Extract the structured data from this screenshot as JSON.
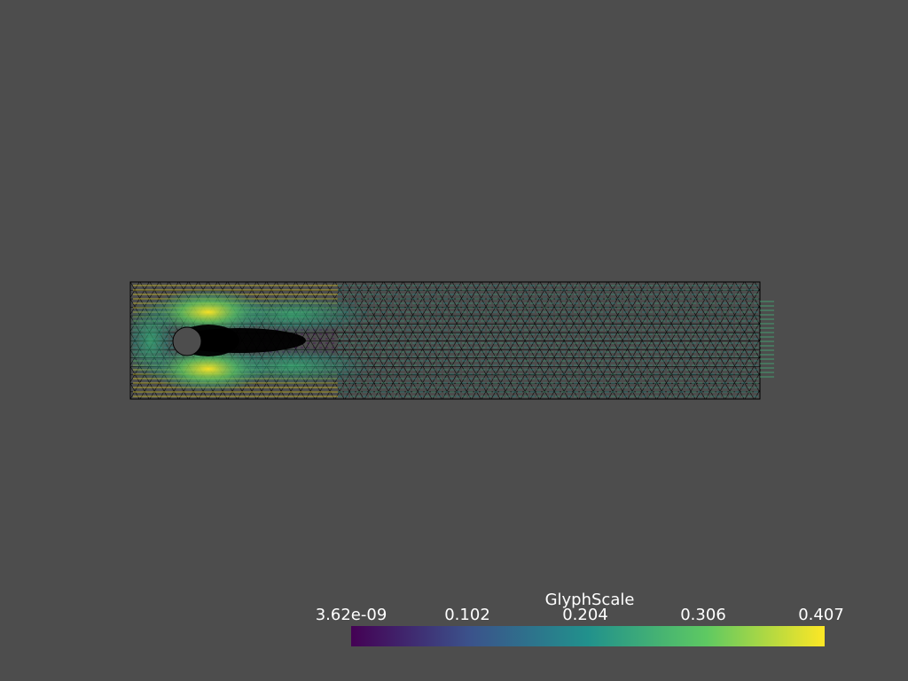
{
  "scene": {
    "background_color": "#4d4d4d",
    "mesh_color": "#000000",
    "obstacle_fill": "#4d4d4d",
    "colormap": [
      "#440154",
      "#3b528b",
      "#21918c",
      "#5ec962",
      "#fde725"
    ],
    "description_of_field": "flow-around-cylinder"
  },
  "colorbar": {
    "title": "GlyphScale",
    "ticks": [
      "3.62e-09",
      "0.102",
      "0.204",
      "0.306",
      "0.407"
    ],
    "range": [
      3.62e-09,
      0.407
    ]
  }
}
